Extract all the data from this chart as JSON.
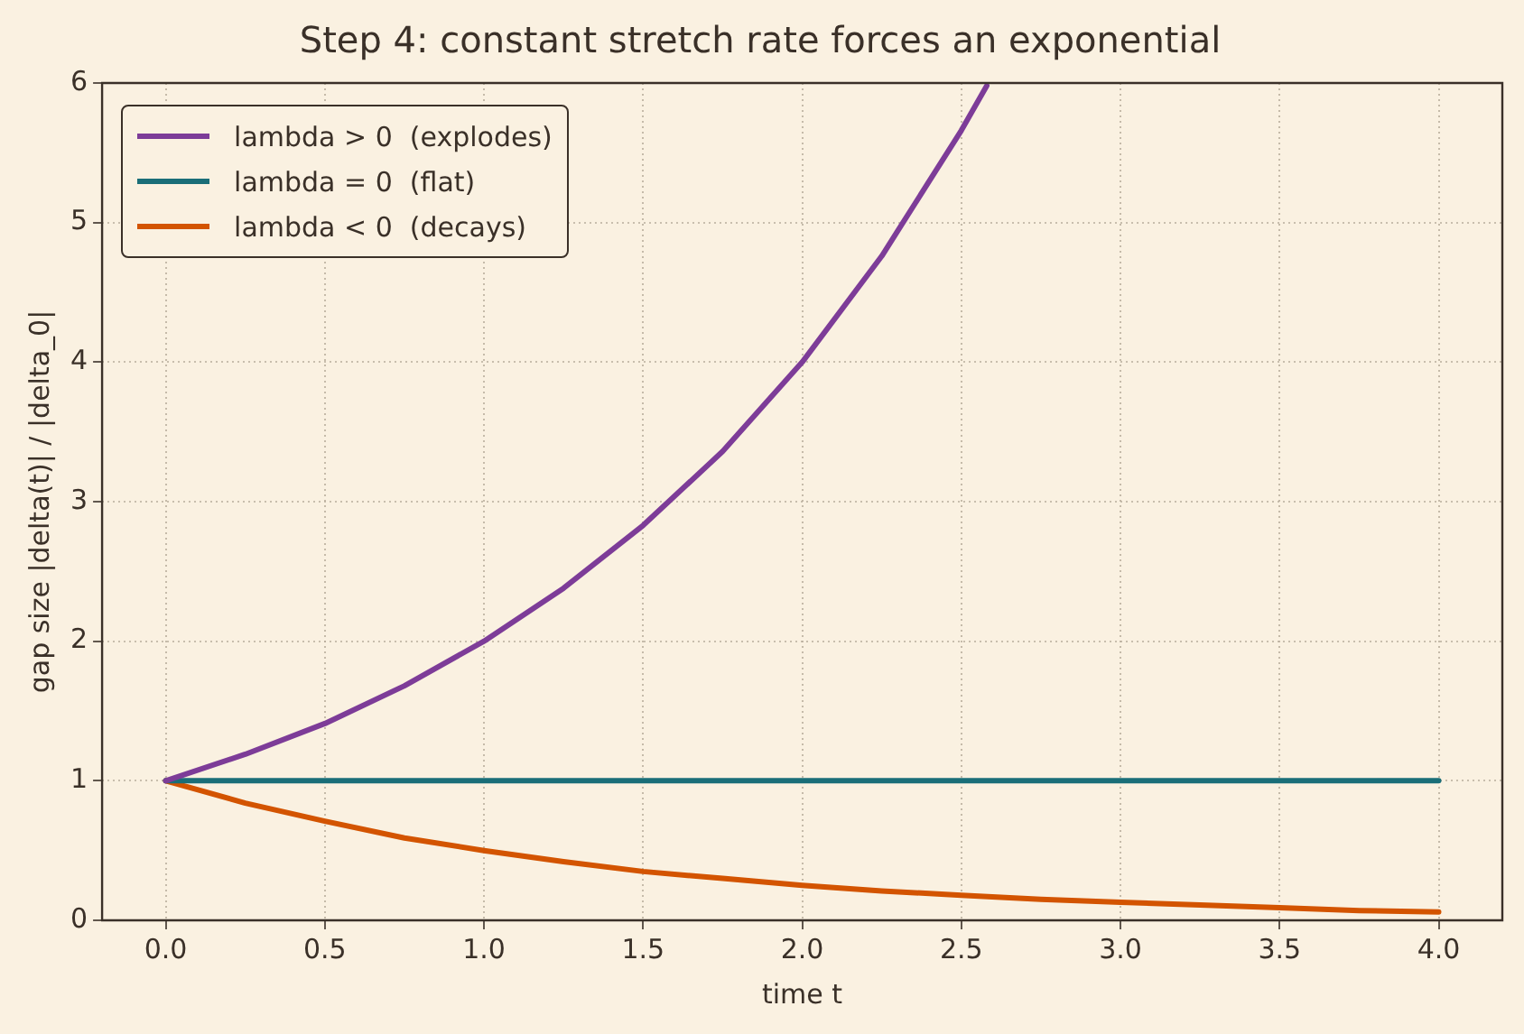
{
  "chart_data": {
    "type": "line",
    "title": "Step 4: constant stretch rate forces an exponential",
    "xlabel": "time t",
    "ylabel": "gap size |delta(t)| / |delta_0|",
    "xlim": [
      -0.2,
      4.2
    ],
    "xticks": [
      {
        "value": 0,
        "label": "0.0"
      },
      {
        "value": 0.5,
        "label": "0.5"
      },
      {
        "value": 1,
        "label": "1.0"
      },
      {
        "value": 1.5,
        "label": "1.5"
      },
      {
        "value": 2,
        "label": "2.0"
      },
      {
        "value": 2.5,
        "label": "2.5"
      },
      {
        "value": 3,
        "label": "3.0"
      },
      {
        "value": 3.5,
        "label": "3.5"
      },
      {
        "value": 4,
        "label": "4.0"
      }
    ],
    "ylim": [
      0,
      6
    ],
    "yticks": [
      0,
      1,
      2,
      3,
      4,
      5,
      6
    ],
    "grid": true,
    "legend": "top left",
    "marker": "none",
    "line_style": "solid",
    "series": [
      {
        "name": "lambda > 0  (explodes)",
        "color": "#7d3c98",
        "x": [
          0,
          0.25,
          0.5,
          0.75,
          1,
          1.25,
          1.5,
          1.75,
          2,
          2.25,
          2.5,
          2.58
        ],
        "values": [
          1,
          1.19,
          1.41,
          1.68,
          2,
          2.38,
          2.83,
          3.36,
          4,
          4.76,
          5.66,
          5.98
        ]
      },
      {
        "name": "lambda = 0  (flat)",
        "color": "#1a6e78",
        "x": [
          0,
          4
        ],
        "values": [
          1,
          1
        ]
      },
      {
        "name": "lambda < 0  (decays)",
        "color": "#d35400",
        "x": [
          0,
          0.25,
          0.5,
          0.75,
          1,
          1.25,
          1.5,
          1.75,
          2,
          2.25,
          2.5,
          2.75,
          3,
          3.25,
          3.5,
          3.75,
          4
        ],
        "values": [
          1,
          0.84,
          0.71,
          0.59,
          0.5,
          0.42,
          0.35,
          0.3,
          0.25,
          0.21,
          0.18,
          0.15,
          0.13,
          0.11,
          0.09,
          0.07,
          0.06
        ]
      }
    ]
  }
}
